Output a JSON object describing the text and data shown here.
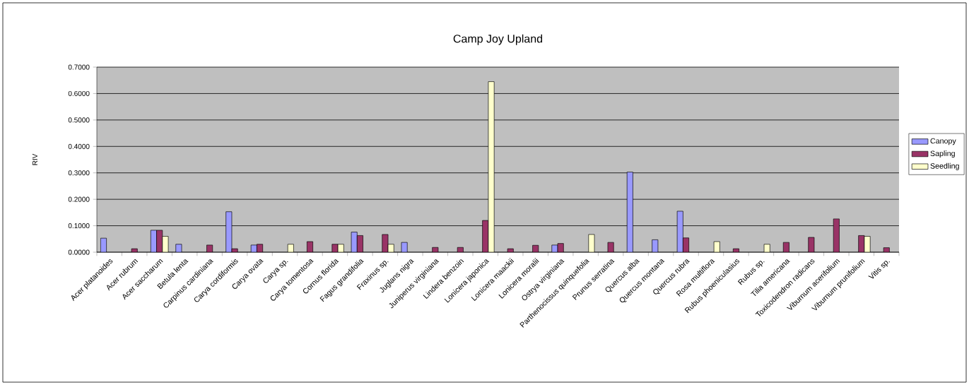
{
  "chart_data": {
    "type": "bar",
    "title": "Camp Joy Upland",
    "ylabel": "RIV",
    "categories": [
      "Acer platanoides",
      "Acer rubrum",
      "Acer saccharum",
      "Betula lenta",
      "Carpinus cardiniana",
      "Carya cordiformis",
      "Carya ovata",
      "Carya sp.",
      "Carya tomentosa",
      "Cornus florida",
      "Fagus grandifolia",
      "Fraxinus sp.",
      "Juglans nigra",
      "Juniperus virginiana",
      "Lindera benzoin",
      "Lonicera japonica",
      "Lonicera maackii",
      "Lonicera moralii",
      "Ostrya virginiana",
      "Parthenocissus quinquefolia",
      "Prunus serratina",
      "Quercus alba",
      "Quercus montana",
      "Quercus rubra",
      "Rosa multiflora",
      "Rubus phoeniculasius",
      "Rubus sp.",
      "Tilia americana",
      "Toxicodendron radicans",
      "Viburnum acerifolium",
      "Viburnum prunifolium",
      "Vitis sp."
    ],
    "series": [
      {
        "name": "Canopy",
        "color": "#9999ff",
        "values": [
          0.053,
          null,
          0.083,
          0.03,
          null,
          0.153,
          0.027,
          null,
          null,
          null,
          0.076,
          null,
          0.037,
          null,
          null,
          null,
          null,
          null,
          0.027,
          null,
          null,
          0.303,
          0.047,
          0.155,
          null,
          null,
          null,
          null,
          null,
          null,
          null,
          null
        ]
      },
      {
        "name": "Sapling",
        "color": "#993366",
        "values": [
          null,
          0.013,
          0.083,
          null,
          0.027,
          0.013,
          0.03,
          null,
          0.04,
          0.03,
          0.063,
          0.067,
          null,
          0.018,
          0.018,
          0.12,
          0.013,
          0.026,
          0.033,
          null,
          0.037,
          null,
          null,
          0.054,
          null,
          0.013,
          null,
          0.037,
          0.056,
          0.126,
          0.063,
          0.017
        ]
      },
      {
        "name": "Seedling",
        "color": "#ffffcc",
        "values": [
          null,
          null,
          0.06,
          null,
          null,
          null,
          null,
          0.03,
          null,
          0.03,
          null,
          0.03,
          null,
          null,
          null,
          0.645,
          null,
          null,
          null,
          0.067,
          null,
          null,
          null,
          null,
          0.04,
          null,
          0.03,
          null,
          null,
          null,
          0.06,
          null
        ]
      }
    ],
    "ylim": [
      0,
      0.7
    ],
    "yticks": [
      {
        "value": 0,
        "label": "0.0000"
      },
      {
        "value": 0.1,
        "label": "0.1000"
      },
      {
        "value": 0.2,
        "label": "0.2000"
      },
      {
        "value": 0.3,
        "label": "0.3000"
      },
      {
        "value": 0.4,
        "label": "0.4000"
      },
      {
        "value": 0.5,
        "label": "0.5000"
      },
      {
        "value": 0.6,
        "label": "0.6000"
      },
      {
        "value": 0.7,
        "label": "0.7000"
      }
    ],
    "grid": "y",
    "legend": "right"
  }
}
